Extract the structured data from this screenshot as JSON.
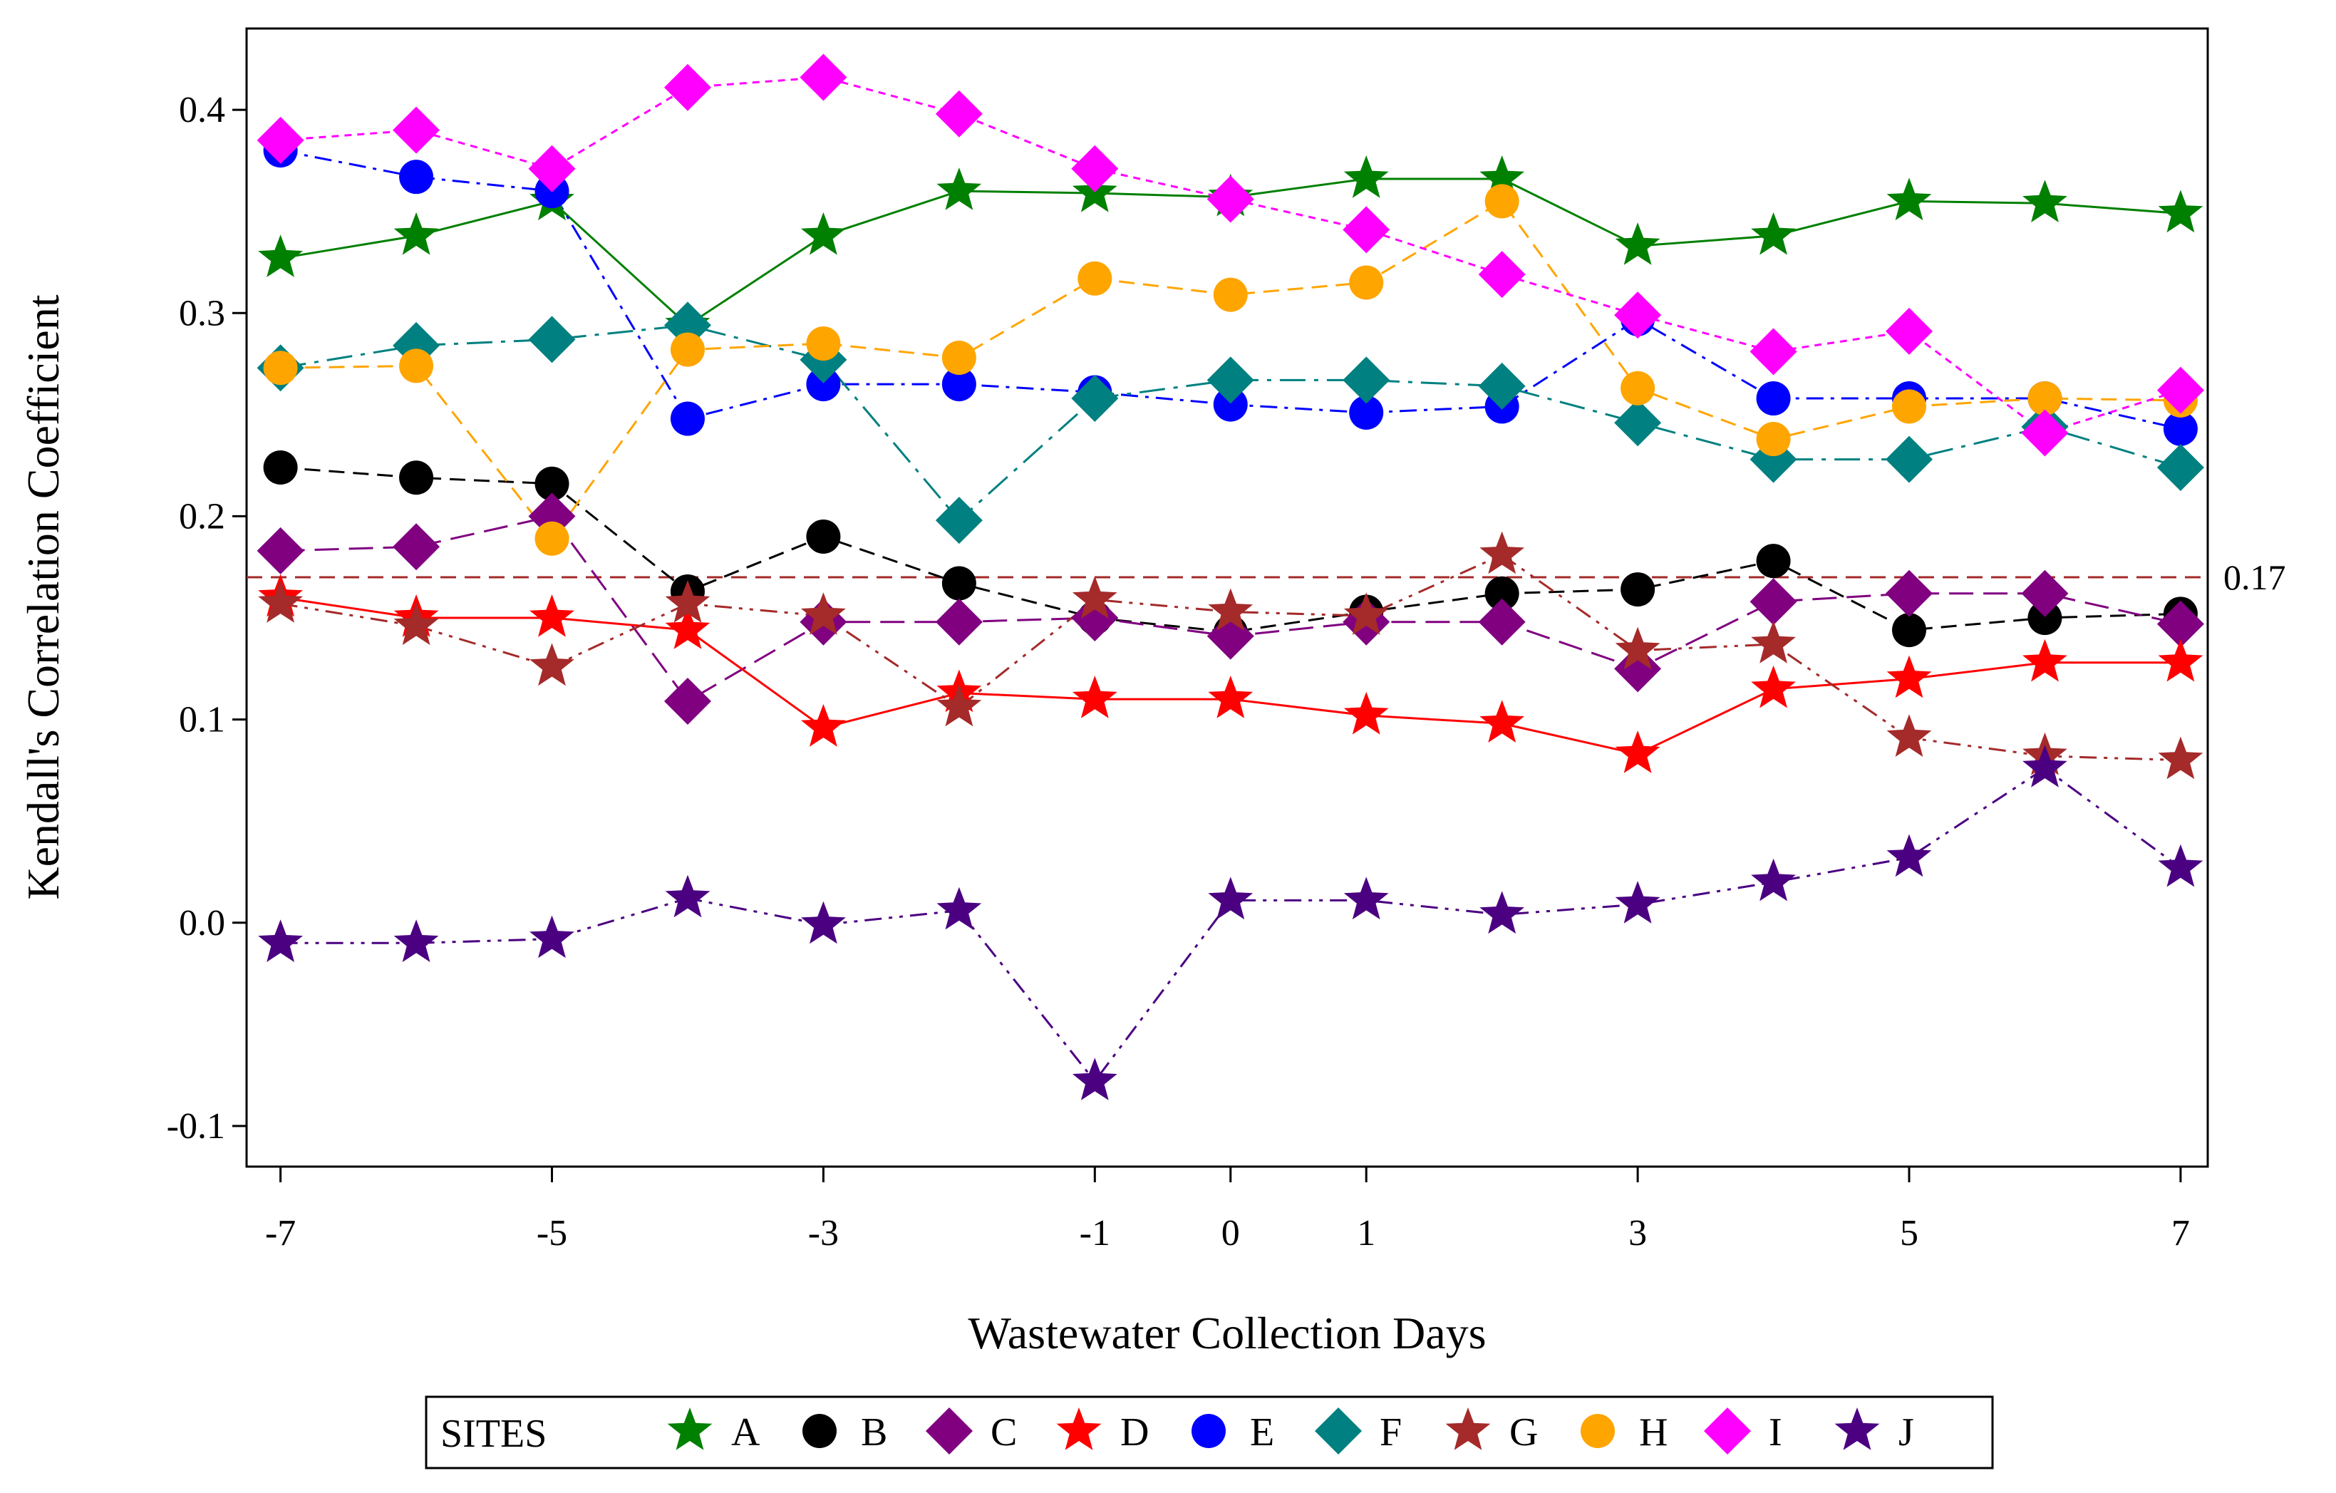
{
  "chart_data": {
    "type": "line",
    "xlabel": "Wastewater Collection Days",
    "ylabel": "Kendall's Correlation Coefficient",
    "x": [
      -7,
      -6,
      -5,
      -4,
      -3,
      -2,
      -1,
      0,
      1,
      2,
      3,
      4,
      5,
      6,
      7
    ],
    "x_tick_values": [
      -7,
      -5,
      -3,
      -1,
      0,
      1,
      3,
      5,
      7
    ],
    "x_tick_labels": [
      "-7",
      "-5",
      "-3",
      "-1",
      "0",
      "1",
      "3",
      "5",
      "7"
    ],
    "xlim": [
      -7.25,
      7.2
    ],
    "y_tick_values": [
      -0.1,
      0.0,
      0.1,
      0.2,
      0.3,
      0.4
    ],
    "y_tick_labels": [
      "-0.1",
      "0.0",
      "0.1",
      "0.2",
      "0.3",
      "0.4"
    ],
    "ylim": [
      -0.12,
      0.44
    ],
    "grid": false,
    "legend": {
      "title": "SITES",
      "position": "bottom"
    },
    "reference_line": {
      "value": 0.17,
      "label": "0.17",
      "color": "#a52a2a",
      "style": "dashed"
    },
    "series": [
      {
        "name": "A",
        "marker": "star",
        "color": "#008000",
        "line": "solid",
        "values": [
          0.327,
          0.338,
          0.355,
          0.294,
          0.338,
          0.36,
          0.359,
          0.357,
          0.366,
          0.366,
          0.333,
          0.338,
          0.355,
          0.354,
          0.349
        ]
      },
      {
        "name": "B",
        "marker": "circle",
        "color": "#000000",
        "line": "dashed",
        "values": [
          0.224,
          0.219,
          0.216,
          0.163,
          0.19,
          0.167,
          0.15,
          0.143,
          0.153,
          0.162,
          0.164,
          0.178,
          0.144,
          0.15,
          0.152
        ]
      },
      {
        "name": "C",
        "marker": "diamond",
        "color": "#800080",
        "line": "longdash",
        "values": [
          0.183,
          0.185,
          0.2,
          0.109,
          0.148,
          0.148,
          0.15,
          0.141,
          0.148,
          0.148,
          0.125,
          0.158,
          0.162,
          0.162,
          0.147
        ]
      },
      {
        "name": "D",
        "marker": "star",
        "color": "#ff0000",
        "line": "solid",
        "values": [
          0.16,
          0.15,
          0.15,
          0.144,
          0.096,
          0.113,
          0.11,
          0.11,
          0.102,
          0.098,
          0.083,
          0.115,
          0.12,
          0.128,
          0.128
        ]
      },
      {
        "name": "E",
        "marker": "circle",
        "color": "#0000ff",
        "line": "dashdot",
        "values": [
          0.38,
          0.367,
          0.36,
          0.248,
          0.265,
          0.265,
          0.261,
          0.255,
          0.251,
          0.254,
          0.297,
          0.258,
          0.258,
          0.258,
          0.243
        ]
      },
      {
        "name": "F",
        "marker": "diamond",
        "color": "#008080",
        "line": "longdashdot",
        "values": [
          0.273,
          0.284,
          0.287,
          0.294,
          0.277,
          0.198,
          0.258,
          0.267,
          0.267,
          0.264,
          0.246,
          0.228,
          0.228,
          0.244,
          0.224
        ]
      },
      {
        "name": "G",
        "marker": "star",
        "color": "#a52a2a",
        "line": "dashdotdot",
        "values": [
          0.157,
          0.146,
          0.126,
          0.157,
          0.151,
          0.106,
          0.159,
          0.153,
          0.151,
          0.181,
          0.134,
          0.137,
          0.091,
          0.082,
          0.08
        ]
      },
      {
        "name": "H",
        "marker": "circle",
        "color": "#ffa500",
        "line": "dashed",
        "values": [
          0.273,
          0.274,
          0.189,
          0.282,
          0.285,
          0.278,
          0.317,
          0.309,
          0.315,
          0.355,
          0.263,
          0.238,
          0.254,
          0.258,
          0.257
        ]
      },
      {
        "name": "I",
        "marker": "diamond",
        "color": "#ff00ff",
        "line": "shortdash",
        "values": [
          0.385,
          0.39,
          0.371,
          0.411,
          0.416,
          0.398,
          0.371,
          0.356,
          0.341,
          0.319,
          0.299,
          0.281,
          0.291,
          0.241,
          0.262
        ]
      },
      {
        "name": "J",
        "marker": "star",
        "color": "#4b0082",
        "line": "dashdotdot",
        "values": [
          -0.01,
          -0.01,
          -0.008,
          0.012,
          -0.001,
          0.006,
          -0.078,
          0.011,
          0.011,
          0.004,
          0.009,
          0.02,
          0.032,
          0.076,
          0.027
        ]
      }
    ]
  }
}
